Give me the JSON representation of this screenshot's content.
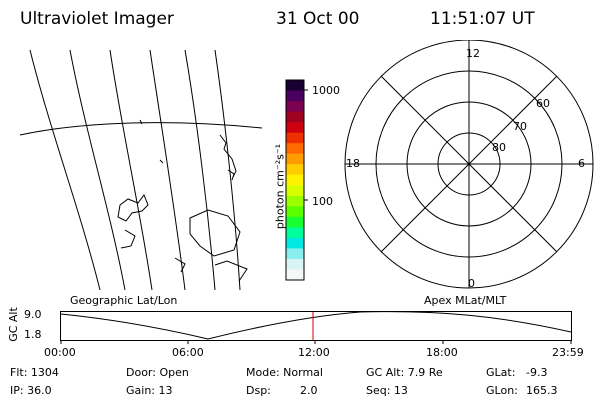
{
  "header": {
    "instrument": "Ultraviolet Imager",
    "date": "31 Oct 00",
    "time": "11:51:07 UT"
  },
  "colorbar": {
    "unit_label": "photon cm⁻²s⁻¹",
    "ticks": [
      "1000",
      "100"
    ],
    "colors": [
      "#1a0030",
      "#4a0060",
      "#7a0050",
      "#a00020",
      "#cc0010",
      "#ee3000",
      "#ff6a00",
      "#ff9d00",
      "#ffce00",
      "#fff200",
      "#d8ff00",
      "#9cff00",
      "#5aff00",
      "#18ff30",
      "#00ff9a",
      "#00e8e0",
      "#8aeeee",
      "#d8f4f4",
      "#f6f8f8"
    ]
  },
  "polar": {
    "mlt_labels": {
      "top": "12",
      "left": "18",
      "right": "6",
      "bottom": "0"
    },
    "lat_labels": [
      "60",
      "70",
      "80"
    ]
  },
  "timeline": {
    "left_title": "Geographic Lat/Lon",
    "right_title": "Apex MLat/MLT",
    "ylabel": "GC Alt",
    "y_ticks": [
      "9.0",
      "1.8"
    ],
    "x_ticks": [
      "00:00",
      "06:00",
      "12:00",
      "18:00",
      "23:59"
    ],
    "current_time_marker": "12:00",
    "marker_color": "#d00000"
  },
  "info": {
    "flt": "Flt: 1304",
    "ip": "IP: 36.0",
    "door": "Door: Open",
    "gain": "Gain: 13",
    "mode": "Mode: Normal",
    "dsp_label": "Dsp:",
    "dsp_value": "2.0",
    "gcalt": "GC Alt: 7.9 Re",
    "seq": "Seq: 13",
    "glat_label": "GLat:",
    "glat_value": "-9.3",
    "glon_label": "GLon:",
    "glon_value": "165.3"
  }
}
